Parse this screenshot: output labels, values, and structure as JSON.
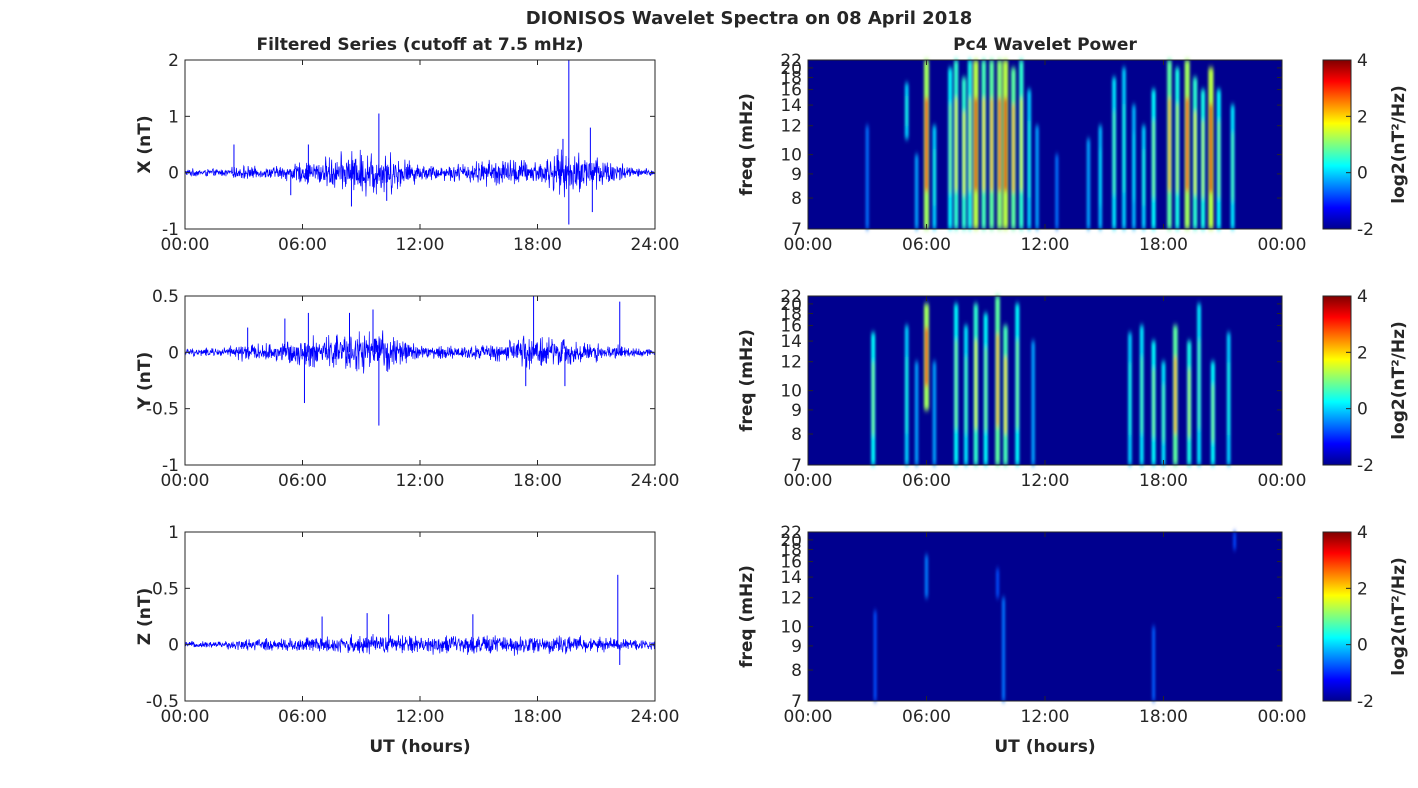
{
  "figure": {
    "title": "DIONISOS Wavelet Spectra on 08 April 2018",
    "left_title": "Filtered Series (cutoff at 7.5 mHz)",
    "right_title": "Pc4 Wavelet Power",
    "xlabel": "UT (hours)"
  },
  "colors": {
    "trace": "#0000ff",
    "axis": "#262626",
    "spectrogram_background": "#00008f",
    "colormap": "jet"
  },
  "chart_data": [
    {
      "type": "line",
      "component": "X",
      "ylabel": "X (nT)",
      "xlim": [
        0,
        24
      ],
      "ylim": [
        -1,
        2
      ],
      "xticklabels": [
        "00:00",
        "06:00",
        "12:00",
        "18:00",
        "24:00"
      ],
      "yticks": [
        -1,
        0,
        1,
        2
      ],
      "yticklabels": [
        "-1",
        "0",
        "1",
        "2"
      ],
      "envelope": {
        "x": [
          0,
          2,
          3,
          4,
          6,
          7,
          8,
          9,
          10,
          11,
          12,
          13,
          14,
          15,
          16,
          17,
          18,
          19,
          20,
          21,
          22,
          23,
          24
        ],
        "amplitude": [
          0.08,
          0.08,
          0.15,
          0.1,
          0.22,
          0.3,
          0.4,
          0.5,
          0.5,
          0.35,
          0.18,
          0.15,
          0.2,
          0.25,
          0.3,
          0.3,
          0.25,
          0.45,
          0.45,
          0.4,
          0.25,
          0.1,
          0.08
        ]
      },
      "spikes": [
        {
          "x": 2.5,
          "y": 0.5
        },
        {
          "x": 5.4,
          "y": -0.4
        },
        {
          "x": 6.3,
          "y": 0.5
        },
        {
          "x": 8.5,
          "y": -0.6
        },
        {
          "x": 9.9,
          "y": 1.05
        },
        {
          "x": 10.3,
          "y": -0.5
        },
        {
          "x": 19.3,
          "y": 0.6
        },
        {
          "x": 19.6,
          "y": 2.0
        },
        {
          "x": 19.6,
          "y": -0.92
        },
        {
          "x": 20.7,
          "y": 0.8
        },
        {
          "x": 20.8,
          "y": -0.7
        }
      ]
    },
    {
      "type": "line",
      "component": "Y",
      "ylabel": "Y (nT)",
      "xlim": [
        0,
        24
      ],
      "ylim": [
        -1,
        0.5
      ],
      "xticklabels": [
        "00:00",
        "06:00",
        "12:00",
        "18:00",
        "24:00"
      ],
      "yticks": [
        -1,
        -0.5,
        0,
        0.5
      ],
      "yticklabels": [
        "-1",
        "-0.5",
        "0",
        "0.5"
      ],
      "envelope": {
        "x": [
          0,
          2,
          3,
          4,
          5,
          6,
          7,
          8,
          9,
          10,
          11,
          12,
          13,
          14,
          15,
          16,
          17,
          18,
          19,
          20,
          21,
          22,
          23,
          24
        ],
        "amplitude": [
          0.04,
          0.05,
          0.1,
          0.08,
          0.12,
          0.15,
          0.18,
          0.2,
          0.22,
          0.22,
          0.15,
          0.08,
          0.07,
          0.07,
          0.08,
          0.1,
          0.15,
          0.2,
          0.15,
          0.12,
          0.1,
          0.08,
          0.05,
          0.04
        ]
      },
      "spikes": [
        {
          "x": 3.2,
          "y": 0.22
        },
        {
          "x": 5.1,
          "y": 0.3
        },
        {
          "x": 6.1,
          "y": -0.45
        },
        {
          "x": 6.3,
          "y": 0.35
        },
        {
          "x": 8.4,
          "y": 0.35
        },
        {
          "x": 9.6,
          "y": 0.38
        },
        {
          "x": 9.9,
          "y": -0.65
        },
        {
          "x": 17.4,
          "y": -0.3
        },
        {
          "x": 17.8,
          "y": 0.5
        },
        {
          "x": 19.4,
          "y": -0.3
        },
        {
          "x": 22.2,
          "y": 0.45
        }
      ]
    },
    {
      "type": "line",
      "component": "Z",
      "ylabel": "Z (nT)",
      "xlim": [
        0,
        24
      ],
      "ylim": [
        -0.5,
        1
      ],
      "xticklabels": [
        "00:00",
        "06:00",
        "12:00",
        "18:00",
        "24:00"
      ],
      "yticks": [
        -0.5,
        0,
        0.5,
        1
      ],
      "yticklabels": [
        "-0.5",
        "0",
        "0.5",
        "1"
      ],
      "envelope": {
        "x": [
          0,
          2,
          3,
          6,
          9,
          10,
          12,
          15,
          18,
          21,
          22,
          24
        ],
        "amplitude": [
          0.03,
          0.04,
          0.06,
          0.08,
          0.1,
          0.1,
          0.1,
          0.1,
          0.1,
          0.08,
          0.07,
          0.05
        ]
      },
      "spikes": [
        {
          "x": 7.0,
          "y": 0.25
        },
        {
          "x": 9.3,
          "y": 0.28
        },
        {
          "x": 10.4,
          "y": 0.27
        },
        {
          "x": 14.7,
          "y": 0.27
        },
        {
          "x": 22.1,
          "y": 0.62
        },
        {
          "x": 22.2,
          "y": -0.18
        }
      ]
    },
    {
      "type": "heatmap",
      "component": "X",
      "ylabel": "freq (mHz)",
      "xlim": [
        0,
        24
      ],
      "ylim": [
        7,
        22
      ],
      "xticklabels": [
        "00:00",
        "06:00",
        "12:00",
        "18:00",
        "00:00"
      ],
      "yticks": [
        7,
        8,
        9,
        10,
        12,
        14,
        16,
        18,
        20,
        22
      ],
      "yticklabels": [
        "7",
        "8",
        "9",
        "10",
        "12",
        "14",
        "16",
        "18",
        "20",
        "22"
      ],
      "colorbar": {
        "label": "log2(nT²/Hz)",
        "range": [
          -2,
          4
        ],
        "ticks": [
          -2,
          0,
          2,
          4
        ],
        "ticklabels": [
          "-2",
          "0",
          "2",
          "4"
        ]
      },
      "bursts": [
        {
          "t": 3.0,
          "f0": 7,
          "f1": 12,
          "power": 0.2
        },
        {
          "t": 5.0,
          "f0": 11,
          "f1": 17,
          "power": 0.4
        },
        {
          "t": 5.5,
          "f0": 7,
          "f1": 10,
          "power": 0.3
        },
        {
          "t": 6.0,
          "f0": 7,
          "f1": 22,
          "power": 0.85
        },
        {
          "t": 6.4,
          "f0": 7,
          "f1": 12,
          "power": 0.4
        },
        {
          "t": 7.2,
          "f0": 7,
          "f1": 20,
          "power": 0.5
        },
        {
          "t": 7.5,
          "f0": 7,
          "f1": 22,
          "power": 0.6
        },
        {
          "t": 7.9,
          "f0": 7,
          "f1": 18,
          "power": 0.6
        },
        {
          "t": 8.2,
          "f0": 7,
          "f1": 22,
          "power": 0.55
        },
        {
          "t": 8.5,
          "f0": 7,
          "f1": 22,
          "power": 0.9
        },
        {
          "t": 8.9,
          "f0": 7,
          "f1": 22,
          "power": 0.65
        },
        {
          "t": 9.3,
          "f0": 7,
          "f1": 22,
          "power": 0.7
        },
        {
          "t": 9.7,
          "f0": 7,
          "f1": 22,
          "power": 0.8
        },
        {
          "t": 10.0,
          "f0": 7,
          "f1": 22,
          "power": 0.9
        },
        {
          "t": 10.4,
          "f0": 7,
          "f1": 20,
          "power": 0.7
        },
        {
          "t": 10.8,
          "f0": 7,
          "f1": 22,
          "power": 0.6
        },
        {
          "t": 11.2,
          "f0": 7,
          "f1": 16,
          "power": 0.4
        },
        {
          "t": 11.6,
          "f0": 7,
          "f1": 12,
          "power": 0.3
        },
        {
          "t": 12.6,
          "f0": 7,
          "f1": 10,
          "power": 0.2
        },
        {
          "t": 14.2,
          "f0": 7,
          "f1": 11,
          "power": 0.3
        },
        {
          "t": 14.8,
          "f0": 7,
          "f1": 12,
          "power": 0.35
        },
        {
          "t": 15.5,
          "f0": 7,
          "f1": 18,
          "power": 0.45
        },
        {
          "t": 16.0,
          "f0": 7,
          "f1": 20,
          "power": 0.4
        },
        {
          "t": 16.5,
          "f0": 7,
          "f1": 14,
          "power": 0.35
        },
        {
          "t": 17.0,
          "f0": 7,
          "f1": 12,
          "power": 0.4
        },
        {
          "t": 17.5,
          "f0": 7,
          "f1": 16,
          "power": 0.5
        },
        {
          "t": 18.3,
          "f0": 7,
          "f1": 22,
          "power": 0.7
        },
        {
          "t": 18.7,
          "f0": 7,
          "f1": 20,
          "power": 0.55
        },
        {
          "t": 19.2,
          "f0": 7,
          "f1": 22,
          "power": 0.85
        },
        {
          "t": 19.6,
          "f0": 7,
          "f1": 18,
          "power": 0.6
        },
        {
          "t": 20.0,
          "f0": 7,
          "f1": 16,
          "power": 0.55
        },
        {
          "t": 20.4,
          "f0": 7,
          "f1": 20,
          "power": 0.9
        },
        {
          "t": 20.8,
          "f0": 7,
          "f1": 16,
          "power": 0.5
        },
        {
          "t": 21.5,
          "f0": 7,
          "f1": 14,
          "power": 0.45
        }
      ]
    },
    {
      "type": "heatmap",
      "component": "Y",
      "ylabel": "freq (mHz)",
      "xlim": [
        0,
        24
      ],
      "ylim": [
        7,
        22
      ],
      "xticklabels": [
        "00:00",
        "06:00",
        "12:00",
        "18:00",
        "00:00"
      ],
      "yticks": [
        7,
        8,
        9,
        10,
        12,
        14,
        16,
        18,
        20,
        22
      ],
      "yticklabels": [
        "7",
        "8",
        "9",
        "10",
        "12",
        "14",
        "16",
        "18",
        "20",
        "22"
      ],
      "colorbar": {
        "label": "log2(nT²/Hz)",
        "range": [
          -2,
          4
        ],
        "ticks": [
          -2,
          0,
          2,
          4
        ],
        "ticklabels": [
          "-2",
          "0",
          "2",
          "4"
        ]
      },
      "bursts": [
        {
          "t": 3.3,
          "f0": 7,
          "f1": 15,
          "power": 0.5
        },
        {
          "t": 5.0,
          "f0": 7,
          "f1": 16,
          "power": 0.4
        },
        {
          "t": 5.5,
          "f0": 7,
          "f1": 12,
          "power": 0.3
        },
        {
          "t": 6.0,
          "f0": 9,
          "f1": 20,
          "power": 0.85
        },
        {
          "t": 6.4,
          "f0": 7,
          "f1": 12,
          "power": 0.3
        },
        {
          "t": 7.5,
          "f0": 7,
          "f1": 20,
          "power": 0.5
        },
        {
          "t": 8.0,
          "f0": 7,
          "f1": 16,
          "power": 0.45
        },
        {
          "t": 8.5,
          "f0": 7,
          "f1": 20,
          "power": 0.6
        },
        {
          "t": 9.0,
          "f0": 7,
          "f1": 18,
          "power": 0.5
        },
        {
          "t": 9.6,
          "f0": 7,
          "f1": 22,
          "power": 0.7
        },
        {
          "t": 10.0,
          "f0": 7,
          "f1": 16,
          "power": 0.65
        },
        {
          "t": 10.6,
          "f0": 7,
          "f1": 20,
          "power": 0.5
        },
        {
          "t": 11.4,
          "f0": 7,
          "f1": 14,
          "power": 0.3
        },
        {
          "t": 16.3,
          "f0": 7,
          "f1": 15,
          "power": 0.4
        },
        {
          "t": 16.9,
          "f0": 7,
          "f1": 16,
          "power": 0.45
        },
        {
          "t": 17.5,
          "f0": 7,
          "f1": 14,
          "power": 0.5
        },
        {
          "t": 18.0,
          "f0": 7,
          "f1": 12,
          "power": 0.45
        },
        {
          "t": 18.6,
          "f0": 7,
          "f1": 16,
          "power": 0.7
        },
        {
          "t": 19.3,
          "f0": 7,
          "f1": 14,
          "power": 0.55
        },
        {
          "t": 19.8,
          "f0": 7,
          "f1": 20,
          "power": 0.45
        },
        {
          "t": 20.5,
          "f0": 7,
          "f1": 12,
          "power": 0.5
        },
        {
          "t": 21.3,
          "f0": 7,
          "f1": 15,
          "power": 0.4
        }
      ]
    },
    {
      "type": "heatmap",
      "component": "Z",
      "ylabel": "freq (mHz)",
      "xlim": [
        0,
        24
      ],
      "ylim": [
        7,
        22
      ],
      "xticklabels": [
        "00:00",
        "06:00",
        "12:00",
        "18:00",
        "00:00"
      ],
      "yticks": [
        7,
        8,
        9,
        10,
        12,
        14,
        16,
        18,
        20,
        22
      ],
      "yticklabels": [
        "7",
        "8",
        "9",
        "10",
        "12",
        "14",
        "16",
        "18",
        "20",
        "22"
      ],
      "colorbar": {
        "label": "log2(nT²/Hz)",
        "range": [
          -2,
          4
        ],
        "ticks": [
          -2,
          0,
          2,
          4
        ],
        "ticklabels": [
          "-2",
          "0",
          "2",
          "4"
        ]
      },
      "bursts": [
        {
          "t": 3.4,
          "f0": 7,
          "f1": 11,
          "power": 0.12
        },
        {
          "t": 6.0,
          "f0": 12,
          "f1": 17,
          "power": 0.22
        },
        {
          "t": 9.6,
          "f0": 12,
          "f1": 15,
          "power": 0.12
        },
        {
          "t": 9.9,
          "f0": 7,
          "f1": 12,
          "power": 0.2
        },
        {
          "t": 17.5,
          "f0": 7,
          "f1": 10,
          "power": 0.15
        },
        {
          "t": 21.6,
          "f0": 18,
          "f1": 22,
          "power": 0.1
        }
      ]
    }
  ]
}
